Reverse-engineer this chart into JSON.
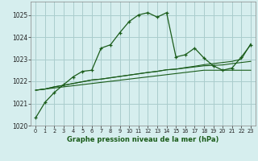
{
  "title": "Graphe pression niveau de la mer (hPa)",
  "background_color": "#d6eeee",
  "grid_color": "#aacccc",
  "line_color": "#1a5c1a",
  "hours": [
    0,
    1,
    2,
    3,
    4,
    5,
    6,
    7,
    8,
    9,
    10,
    11,
    12,
    13,
    14,
    15,
    16,
    17,
    18,
    19,
    20,
    21,
    22,
    23
  ],
  "series1": [
    1020.35,
    1021.05,
    1021.5,
    1021.85,
    1022.2,
    1022.45,
    1022.5,
    1023.5,
    1023.65,
    1024.2,
    1024.7,
    1025.0,
    1025.1,
    1024.9,
    1025.1,
    1023.1,
    1023.2,
    1023.5,
    1023.05,
    1022.7,
    1022.5,
    1022.6,
    1023.1,
    1023.65
  ],
  "series2": [
    1021.6,
    1021.65,
    1021.7,
    1021.75,
    1021.8,
    1021.85,
    1021.9,
    1021.95,
    1022.0,
    1022.05,
    1022.1,
    1022.15,
    1022.2,
    1022.25,
    1022.3,
    1022.35,
    1022.4,
    1022.45,
    1022.5,
    1022.5,
    1022.5,
    1022.5,
    1022.5,
    1022.5
  ],
  "series3": [
    1021.6,
    1021.65,
    1021.75,
    1021.82,
    1021.9,
    1021.98,
    1022.06,
    1022.1,
    1022.16,
    1022.22,
    1022.28,
    1022.34,
    1022.4,
    1022.45,
    1022.52,
    1022.55,
    1022.6,
    1022.65,
    1022.7,
    1022.72,
    1022.74,
    1022.8,
    1022.85,
    1022.9
  ],
  "series4": [
    1021.6,
    1021.65,
    1021.75,
    1021.82,
    1021.9,
    1021.98,
    1022.06,
    1022.1,
    1022.16,
    1022.22,
    1022.28,
    1022.34,
    1022.4,
    1022.45,
    1022.52,
    1022.55,
    1022.62,
    1022.68,
    1022.75,
    1022.8,
    1022.85,
    1022.9,
    1023.0,
    1023.7
  ],
  "ylim": [
    1020.0,
    1025.6
  ],
  "yticks": [
    1020,
    1021,
    1022,
    1023,
    1024,
    1025
  ],
  "xtick_labels": [
    "0",
    "1",
    "2",
    "3",
    "4",
    "5",
    "6",
    "7",
    "8",
    "9",
    "10",
    "11",
    "12",
    "13",
    "14",
    "15",
    "16",
    "17",
    "18",
    "19",
    "20",
    "21",
    "22",
    "23"
  ]
}
